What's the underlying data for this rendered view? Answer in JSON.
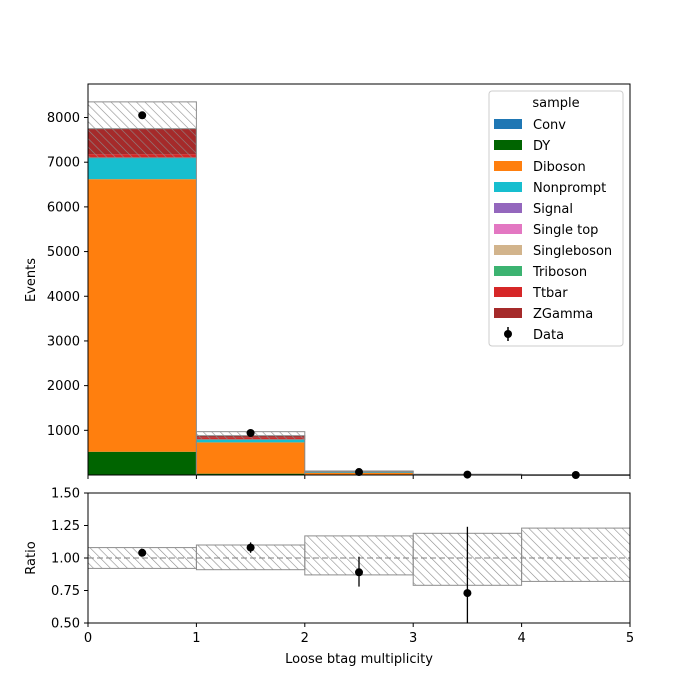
{
  "colors": {
    "Conv": "#1f77b4",
    "DY": "#006400",
    "Diboson": "#ff7f0e",
    "Nonprompt": "#17becf",
    "Signal": "#9467bd",
    "Single top": "#e377c2",
    "Singleboson": "#d2b48c",
    "Triboson": "#3cb371",
    "Ttbar": "#d62728",
    "ZGamma": "#a52a2a"
  },
  "chart_data": [
    {
      "type": "bar",
      "stacked": true,
      "xlabel": "Loose btag multiplicity",
      "ylabel": "Events",
      "xlim": [
        0,
        5
      ],
      "ylim": [
        0,
        8750
      ],
      "yticks": [
        "1000",
        "2000",
        "3000",
        "4000",
        "5000",
        "6000",
        "7000",
        "8000"
      ],
      "bin_edges": [
        0,
        1,
        2,
        3,
        4,
        5
      ],
      "legend": {
        "title": "sample",
        "placement": "top-right",
        "entries": [
          "Conv",
          "DY",
          "Diboson",
          "Nonprompt",
          "Signal",
          "Single top",
          "Singleboson",
          "Triboson",
          "Ttbar",
          "ZGamma",
          "Data"
        ]
      },
      "series": [
        {
          "name": "Conv",
          "values": [
            0,
            0,
            0,
            0,
            0
          ]
        },
        {
          "name": "DY",
          "values": [
            520,
            30,
            5,
            0,
            0
          ]
        },
        {
          "name": "Diboson",
          "values": [
            6100,
            700,
            40,
            6,
            1
          ]
        },
        {
          "name": "Nonprompt",
          "values": [
            480,
            70,
            12,
            2,
            0
          ]
        },
        {
          "name": "Signal",
          "values": [
            0,
            0,
            0,
            0,
            0
          ]
        },
        {
          "name": "Single top",
          "values": [
            0,
            0,
            0,
            0,
            0
          ]
        },
        {
          "name": "Singleboson",
          "values": [
            0,
            0,
            0,
            0,
            0
          ]
        },
        {
          "name": "Triboson",
          "values": [
            0,
            0,
            0,
            0,
            0
          ]
        },
        {
          "name": "Ttbar",
          "values": [
            80,
            35,
            10,
            3,
            1
          ]
        },
        {
          "name": "ZGamma",
          "values": [
            570,
            45,
            8,
            2,
            0
          ]
        }
      ],
      "uncertainty_band": {
        "low": [
          7100,
          795,
          65,
          10,
          1.6
        ],
        "high": [
          8350,
          970,
          90,
          16,
          2.4
        ]
      },
      "data_points": {
        "name": "Data",
        "x": [
          0.5,
          1.5,
          2.5,
          3.5,
          4.5
        ],
        "y": [
          8050,
          940,
          66,
          9,
          0
        ]
      }
    },
    {
      "type": "scatter",
      "xlabel": "Loose btag multiplicity",
      "ylabel": "Ratio",
      "xlim": [
        0,
        5
      ],
      "ylim": [
        0.5,
        1.5
      ],
      "xticks": [
        "0",
        "1",
        "2",
        "3",
        "4",
        "5"
      ],
      "yticks": [
        "0.50",
        "0.75",
        "1.00",
        "1.25",
        "1.50"
      ],
      "reference_line": 1.0,
      "band": {
        "low": [
          0.92,
          0.91,
          0.87,
          0.79,
          0.82
        ],
        "high": [
          1.08,
          1.1,
          1.17,
          1.19,
          1.23
        ]
      },
      "points": {
        "x": [
          0.5,
          1.5,
          2.5,
          3.5
        ],
        "y": [
          1.04,
          1.08,
          0.89,
          0.73
        ],
        "err_low": [
          0.02,
          0.04,
          0.11,
          0.28
        ],
        "err_high": [
          0.02,
          0.04,
          0.12,
          0.51
        ]
      }
    }
  ]
}
